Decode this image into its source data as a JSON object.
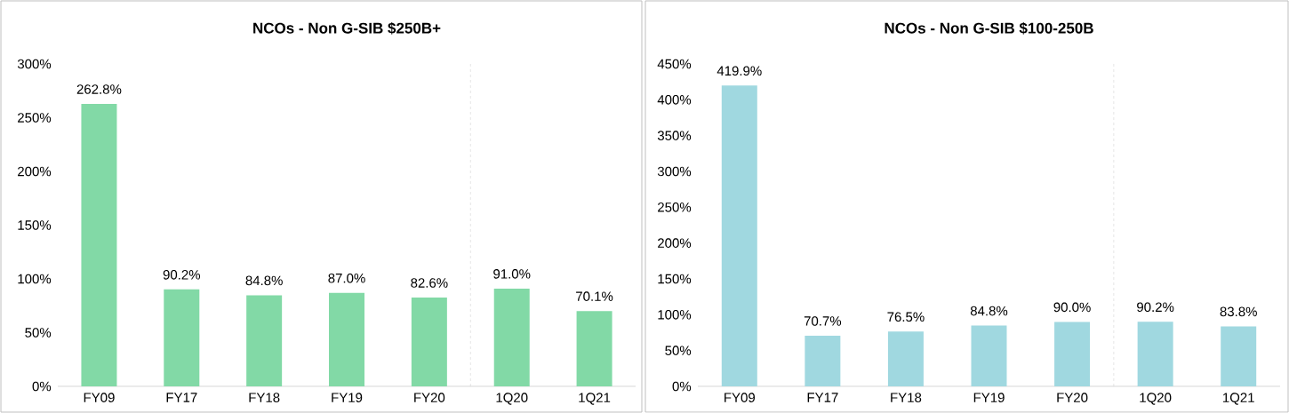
{
  "chart_data": [
    {
      "type": "bar",
      "title": "NCOs - Non G-SIB $250B+",
      "categories": [
        "FY09",
        "FY17",
        "FY18",
        "FY19",
        "FY20",
        "1Q20",
        "1Q21"
      ],
      "values": [
        262.8,
        90.2,
        84.8,
        87.0,
        82.6,
        91.0,
        70.1
      ],
      "value_labels": [
        "262.8%",
        "90.2%",
        "84.8%",
        "87.0%",
        "82.6%",
        "91.0%",
        "70.1%"
      ],
      "color": "#82d9a6",
      "ylim": [
        0,
        300
      ],
      "yticks": [
        {
          "value": 0,
          "label": "0%"
        },
        {
          "value": 50,
          "label": "50%"
        },
        {
          "value": 100,
          "label": "100%"
        },
        {
          "value": 150,
          "label": "150%"
        },
        {
          "value": 200,
          "label": "200%"
        },
        {
          "value": 250,
          "label": "250%"
        },
        {
          "value": 300,
          "label": "300%"
        }
      ]
    },
    {
      "type": "bar",
      "title": "NCOs - Non G-SIB $100-250B",
      "categories": [
        "FY09",
        "FY17",
        "FY18",
        "FY19",
        "FY20",
        "1Q20",
        "1Q21"
      ],
      "values": [
        419.9,
        70.7,
        76.5,
        84.8,
        90.0,
        90.2,
        83.8
      ],
      "value_labels": [
        "419.9%",
        "70.7%",
        "76.5%",
        "84.8%",
        "90.0%",
        "90.2%",
        "83.8%"
      ],
      "color": "#a0d8e0",
      "ylim": [
        0,
        450
      ],
      "yticks": [
        {
          "value": 0,
          "label": "0%"
        },
        {
          "value": 50,
          "label": "50%"
        },
        {
          "value": 100,
          "label": "100%"
        },
        {
          "value": 150,
          "label": "150%"
        },
        {
          "value": 200,
          "label": "200%"
        },
        {
          "value": 250,
          "label": "250%"
        },
        {
          "value": 300,
          "label": "300%"
        },
        {
          "value": 350,
          "label": "350%"
        },
        {
          "value": 400,
          "label": "400%"
        },
        {
          "value": 450,
          "label": "450%"
        }
      ]
    }
  ]
}
